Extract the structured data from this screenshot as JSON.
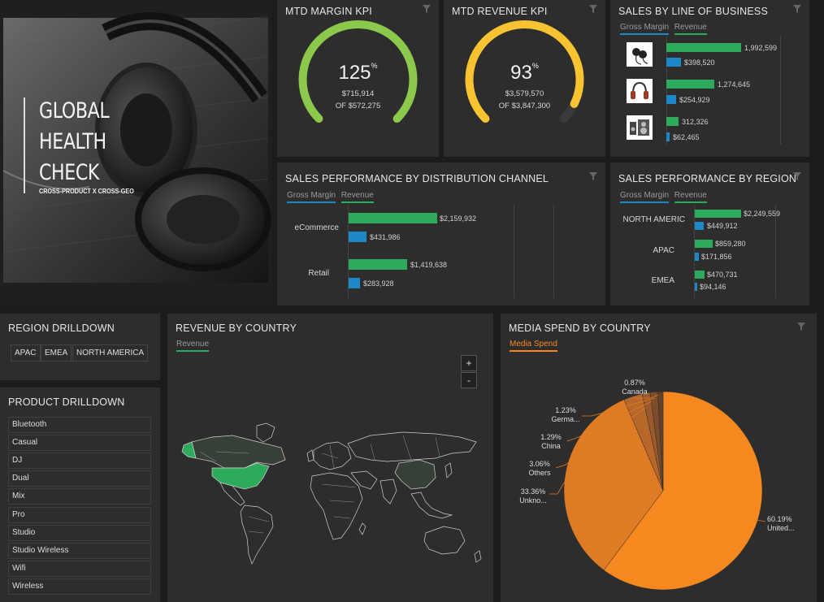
{
  "hero": {
    "title_line1": "GLOBAL",
    "title_line2": "HEALTH",
    "title_line3": "CHECK",
    "subtitle": "CROSS-PRODUCT X CROSS-GEO"
  },
  "mtd_margin": {
    "title": "MTD MARGIN KPI",
    "percent": "125",
    "percent_sign": "%",
    "value": "$715,914",
    "of": "OF $572,275",
    "fill_fraction": 1.0,
    "color": "#8cc84b"
  },
  "mtd_revenue": {
    "title": "MTD REVENUE KPI",
    "percent": "93",
    "percent_sign": "%",
    "value": "$3,579,570",
    "of": "OF $3,847,300",
    "fill_fraction": 0.93,
    "color": "#f7c331"
  },
  "legend": {
    "gross_margin": "Gross Margin",
    "revenue": "Revenue",
    "media_spend": "Media Spend"
  },
  "sales_lob": {
    "title": "SALES BY LINE OF BUSINESS",
    "rows": [
      {
        "icon": "earbuds-icon",
        "revenue": "1,992,599",
        "gross_margin": "$398,520"
      },
      {
        "icon": "headphones-icon",
        "revenue": "1,274,645",
        "gross_margin": "$254,929"
      },
      {
        "icon": "speakers-icon",
        "revenue": "312,326",
        "gross_margin": "$62,465"
      }
    ]
  },
  "sales_channel": {
    "title": "SALES PERFORMANCE BY DISTRIBUTION CHANNEL",
    "rows": [
      {
        "label": "eCommerce",
        "revenue": "$2,159,932",
        "gross_margin": "$431,986"
      },
      {
        "label": "Retail",
        "revenue": "$1,419,638",
        "gross_margin": "$283,928"
      }
    ]
  },
  "sales_region": {
    "title": "SALES PERFORMANCE BY REGION",
    "rows": [
      {
        "label": "NORTH AMERIC",
        "revenue": "$2,249,559",
        "gross_margin": "$449,912"
      },
      {
        "label": "APAC",
        "revenue": "$859,280",
        "gross_margin": "$171,856"
      },
      {
        "label": "EMEA",
        "revenue": "$470,731",
        "gross_margin": "$94,146"
      }
    ]
  },
  "region_drilldown": {
    "title": "REGION DRILLDOWN",
    "chips": [
      "APAC",
      "EMEA",
      "NORTH AMERICA"
    ]
  },
  "product_drilldown": {
    "title": "PRODUCT DRILLDOWN",
    "items": [
      "Bluetooth",
      "Casual",
      "DJ",
      "Dual",
      "Mix",
      "Pro",
      "Studio",
      "Studio Wireless",
      "Wifi",
      "Wireless"
    ]
  },
  "revenue_country": {
    "title": "REVENUE BY COUNTRY",
    "zoom_in": "+",
    "zoom_out": "-"
  },
  "media_spend": {
    "title": "MEDIA SPEND BY COUNTRY",
    "slices": [
      {
        "pct": "60.19%",
        "name": "United...",
        "value": 60.19,
        "color": "#f5891f"
      },
      {
        "pct": "33.36%",
        "name": "Unkno...",
        "value": 33.36,
        "color": "#e07b25"
      },
      {
        "pct": "3.06%",
        "name": "Others",
        "value": 3.06,
        "color": "#b8672a"
      },
      {
        "pct": "1.29%",
        "name": "China",
        "value": 1.29,
        "color": "#9a5a2c"
      },
      {
        "pct": "1.23%",
        "name": "Germa...",
        "value": 1.23,
        "color": "#7d4c2b"
      },
      {
        "pct": "0.87%",
        "name": "Canada",
        "value": 0.87,
        "color": "#63402a"
      }
    ]
  }
}
